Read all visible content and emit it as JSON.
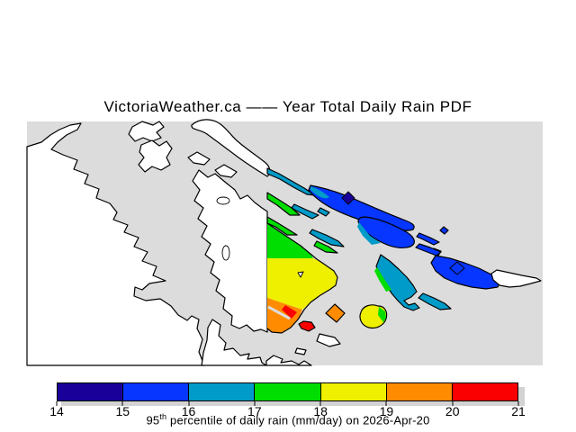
{
  "title": "VictoriaWeather.ca —— Year Total Daily Rain PDF",
  "caption": {
    "prefix": "95",
    "sup": "th",
    "rest": " percentile of daily rain (mm/day) on 2026-Apr-20"
  },
  "colors": {
    "sea": "#dcdcdc",
    "land": "#ffffff",
    "coast": "#000000",
    "shadow": "#d3d3d3",
    "text": "#000000"
  },
  "colorbar": {
    "min": 14,
    "max": 21,
    "units": "mm/day",
    "ticks": [
      "14",
      "15",
      "16",
      "17",
      "18",
      "19",
      "20",
      "21"
    ],
    "segments": [
      {
        "band": "b14",
        "range": "14-15",
        "color": "#190099"
      },
      {
        "band": "b15",
        "range": "15-16",
        "color": "#0636ff"
      },
      {
        "band": "b16",
        "range": "16-17",
        "color": "#009bc8"
      },
      {
        "band": "b17",
        "range": "17-18",
        "color": "#00dd00"
      },
      {
        "band": "b18",
        "range": "18-19",
        "color": "#efef00"
      },
      {
        "band": "b19",
        "range": "19-20",
        "color": "#ff8c00"
      },
      {
        "band": "b20",
        "range": "20-21",
        "color": "#fa0000"
      }
    ]
  }
}
